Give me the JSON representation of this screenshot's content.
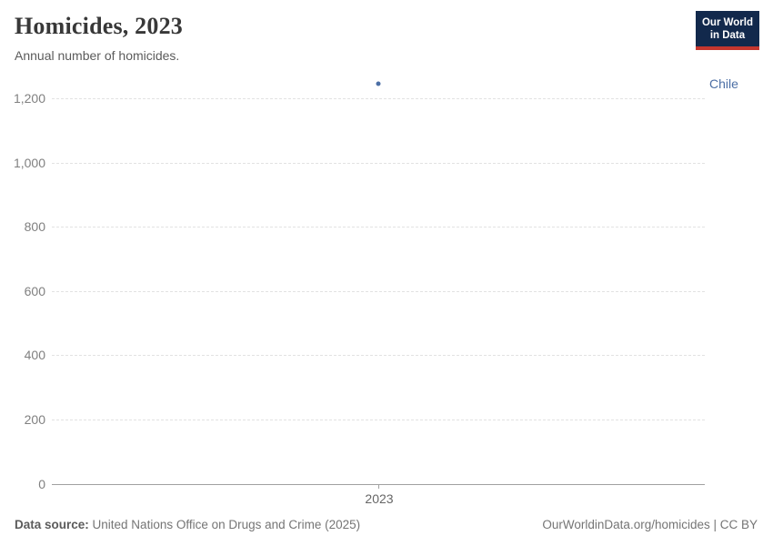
{
  "header": {
    "title": "Homicides, 2023",
    "subtitle": "Annual number of homicides.",
    "logo_line1": "Our World",
    "logo_line2": "in Data",
    "logo_bg_color": "#12294c",
    "logo_bar_color": "#c5362e"
  },
  "footer": {
    "source_label": "Data source:",
    "source_text": " United Nations Office on Drugs and Crime (2025)",
    "link_text": "OurWorldinData.org/homicides | CC BY"
  },
  "chart_data": {
    "type": "scatter",
    "title": "Homicides, 2023",
    "subtitle": "Annual number of homicides.",
    "xlabel": "",
    "ylabel": "",
    "ylim": [
      0,
      1200
    ],
    "grid": "horizontal dashed, zero line solid",
    "legend_position": "entity label right of plot",
    "yticks": [
      {
        "v": 0,
        "label": "0"
      },
      {
        "v": 200,
        "label": "200"
      },
      {
        "v": 400,
        "label": "400"
      },
      {
        "v": 600,
        "label": "600"
      },
      {
        "v": 800,
        "label": "800"
      },
      {
        "v": 1000,
        "label": "1,000"
      },
      {
        "v": 1200,
        "label": "1,200"
      }
    ],
    "xticks": [
      {
        "v": 2023,
        "label": "2023"
      }
    ],
    "series": [
      {
        "name": "Chile",
        "color": "#4c6fa5",
        "points": [
          {
            "x": 2023,
            "y": 1245
          }
        ]
      }
    ]
  }
}
